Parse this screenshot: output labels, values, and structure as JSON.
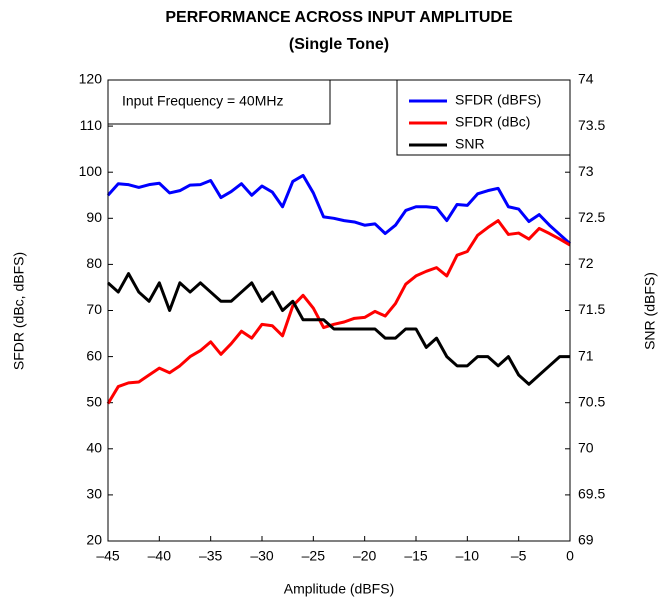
{
  "chart_data": {
    "type": "line",
    "title": "PERFORMANCE ACROSS INPUT AMPLITUDE",
    "subtitle": "(Single Tone)",
    "x_label": "Amplitude (dBFS)",
    "y_label": "SFDR (dBc, dBFS)",
    "y2_label": "SNR (dBFS)",
    "annotation": "Input Frequency = 40MHz",
    "legend": "top-right",
    "grid": false,
    "x": [
      -45,
      -44,
      -43,
      -42,
      -41,
      -40,
      -39,
      -38,
      -37,
      -36,
      -35,
      -34,
      -33,
      -32,
      -31,
      -30,
      -29,
      -28,
      -27,
      -26,
      -25,
      -24,
      -23,
      -22,
      -21,
      -20,
      -19,
      -18,
      -17,
      -16,
      -15,
      -14,
      -13,
      -12,
      -11,
      -10,
      -9,
      -8,
      -7,
      -6,
      -5,
      -4,
      -3,
      -2,
      -1,
      0
    ],
    "xlim": [
      -45,
      0
    ],
    "xticks": [
      {
        "value": -45,
        "label": "–45"
      },
      {
        "value": -40,
        "label": "–40"
      },
      {
        "value": -35,
        "label": "–35"
      },
      {
        "value": -30,
        "label": "–30"
      },
      {
        "value": -25,
        "label": "–25"
      },
      {
        "value": -20,
        "label": "–20"
      },
      {
        "value": -15,
        "label": "–15"
      },
      {
        "value": -10,
        "label": "–10"
      },
      {
        "value": -5,
        "label": "–5"
      },
      0
    ],
    "ylim": [
      20,
      120
    ],
    "yticks": [
      20,
      30,
      40,
      50,
      60,
      70,
      80,
      90,
      100,
      110,
      120
    ],
    "y2lim": [
      69,
      74
    ],
    "y2ticks": [
      69,
      69.5,
      70,
      70.5,
      71,
      71.5,
      72,
      72.5,
      73,
      73.5,
      74
    ],
    "series": [
      {
        "name": "SFDR (dBFS)",
        "color": "#0000ff",
        "values": [
          95,
          97.5,
          97.3,
          96.7,
          97.3,
          97.6,
          95.5,
          96,
          97.2,
          97.3,
          98.2,
          94.5,
          95.8,
          97.5,
          95,
          97,
          95.7,
          92.5,
          98,
          99.3,
          95.5,
          90.3,
          90,
          89.5,
          89.2,
          88.5,
          88.8,
          86.7,
          88.5,
          91.7,
          92.5,
          92.5,
          92.3,
          89.5,
          93,
          92.8,
          95.3,
          96,
          96.5,
          92.5,
          92,
          89.3,
          90.8,
          88.5,
          86.5,
          84.5
        ]
      },
      {
        "name": "SFDR (dBc)",
        "color": "#ff0000",
        "values": [
          49.8,
          53.5,
          54.3,
          54.5,
          56,
          57.5,
          56.5,
          58,
          60,
          61.3,
          63.2,
          60.5,
          62.8,
          65.5,
          64,
          67,
          66.7,
          64.5,
          71,
          73.3,
          70.5,
          66.3,
          67,
          67.5,
          68.3,
          68.5,
          69.8,
          68.8,
          71.5,
          75.7,
          77.5,
          78.5,
          79.3,
          77.5,
          82,
          82.8,
          86.3,
          88,
          89.5,
          86.5,
          86.8,
          85.5,
          87.8,
          86.7,
          85.5,
          84.2
        ]
      },
      {
        "name": "SNR",
        "color": "#000000",
        "axis": "y2",
        "values": [
          71.8,
          71.7,
          71.9,
          71.7,
          71.6,
          71.8,
          71.5,
          71.8,
          71.7,
          71.8,
          71.7,
          71.6,
          71.6,
          71.7,
          71.8,
          71.6,
          71.7,
          71.5,
          71.6,
          71.4,
          71.4,
          71.4,
          71.3,
          71.3,
          71.3,
          71.3,
          71.3,
          71.2,
          71.2,
          71.3,
          71.3,
          71.1,
          71.2,
          71,
          70.9,
          70.9,
          71,
          71,
          70.9,
          71,
          70.8,
          70.7,
          70.8,
          70.9,
          71,
          71
        ]
      }
    ]
  }
}
